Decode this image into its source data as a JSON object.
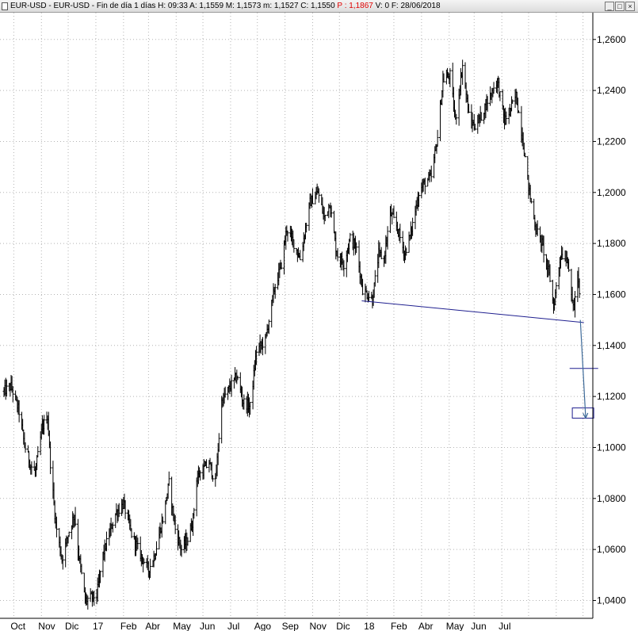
{
  "window": {
    "title_prefix": "EUR-USD - EUR-USD - Fin de día 1 días  H: 09:33  A: 1,1559  M: 1,1573  m: 1,1527  C: 1,1550  ",
    "title_p": "P : 1,1867",
    "title_suffix": "  V: 0  F: 28/06/2018",
    "buttons": {
      "minimize": "_",
      "maximize": "□",
      "close": "×"
    }
  },
  "chart_data": {
    "type": "candlestick",
    "instrument": "EUR-USD",
    "timeframe": "daily",
    "y_axis": {
      "ticks": [
        1.26,
        1.24,
        1.22,
        1.2,
        1.18,
        1.16,
        1.14,
        1.12,
        1.1,
        1.08,
        1.06,
        1.04
      ],
      "tick_labels": [
        "1,2600",
        "1,2400",
        "1,2200",
        "1,2000",
        "1,1800",
        "1,1600",
        "1,1400",
        "1,1200",
        "1,1000",
        "1,0800",
        "1,0600",
        "1,0400"
      ],
      "range": [
        1.033,
        1.2705
      ],
      "side": "right"
    },
    "x_axis": {
      "labels": [
        "Oct",
        "Nov",
        "Dic",
        "17",
        "Feb",
        "Abr",
        "May",
        "Jun",
        "Jul",
        "Ago",
        "Sep",
        "Nov",
        "Dic",
        "18",
        "Feb",
        "Abr",
        "May",
        "Jun",
        "Jul"
      ],
      "range": [
        "2016-09-20",
        "2018-07-12"
      ]
    },
    "grid": "dotted",
    "price_path": [
      [
        "2016-09-20",
        1.122
      ],
      [
        "2016-09-28",
        1.124
      ],
      [
        "2016-10-07",
        1.114
      ],
      [
        "2016-10-13",
        1.101
      ],
      [
        "2016-10-20",
        1.093
      ],
      [
        "2016-10-25",
        1.09
      ],
      [
        "2016-11-02",
        1.108
      ],
      [
        "2016-11-08",
        1.112
      ],
      [
        "2016-11-11",
        1.094
      ],
      [
        "2016-11-17",
        1.07
      ],
      [
        "2016-11-24",
        1.056
      ],
      [
        "2016-12-01",
        1.066
      ],
      [
        "2016-12-08",
        1.074
      ],
      [
        "2016-12-12",
        1.06
      ],
      [
        "2016-12-20",
        1.04
      ],
      [
        "2017-01-02",
        1.042
      ],
      [
        "2017-01-09",
        1.058
      ],
      [
        "2017-01-16",
        1.066
      ],
      [
        "2017-01-23",
        1.074
      ],
      [
        "2017-02-01",
        1.078
      ],
      [
        "2017-02-10",
        1.066
      ],
      [
        "2017-02-20",
        1.058
      ],
      [
        "2017-03-01",
        1.052
      ],
      [
        "2017-03-08",
        1.058
      ],
      [
        "2017-03-17",
        1.072
      ],
      [
        "2017-03-24",
        1.086
      ],
      [
        "2017-03-31",
        1.068
      ],
      [
        "2017-04-07",
        1.06
      ],
      [
        "2017-04-14",
        1.064
      ],
      [
        "2017-04-20",
        1.072
      ],
      [
        "2017-04-24",
        1.088
      ],
      [
        "2017-05-08",
        1.094
      ],
      [
        "2017-05-15",
        1.086
      ],
      [
        "2017-05-22",
        1.118
      ],
      [
        "2017-06-01",
        1.124
      ],
      [
        "2017-06-08",
        1.128
      ],
      [
        "2017-06-15",
        1.118
      ],
      [
        "2017-06-23",
        1.116
      ],
      [
        "2017-06-30",
        1.138
      ],
      [
        "2017-07-10",
        1.142
      ],
      [
        "2017-07-20",
        1.162
      ],
      [
        "2017-07-28",
        1.172
      ],
      [
        "2017-08-03",
        1.186
      ],
      [
        "2017-08-11",
        1.18
      ],
      [
        "2017-08-18",
        1.174
      ],
      [
        "2017-08-29",
        1.196
      ],
      [
        "2017-09-07",
        1.2
      ],
      [
        "2017-09-14",
        1.19
      ],
      [
        "2017-09-20",
        1.196
      ],
      [
        "2017-09-28",
        1.176
      ],
      [
        "2017-10-06",
        1.172
      ],
      [
        "2017-10-13",
        1.182
      ],
      [
        "2017-10-20",
        1.178
      ],
      [
        "2017-10-27",
        1.162
      ],
      [
        "2017-11-07",
        1.158
      ],
      [
        "2017-11-14",
        1.176
      ],
      [
        "2017-11-20",
        1.174
      ],
      [
        "2017-11-27",
        1.192
      ],
      [
        "2017-12-05",
        1.186
      ],
      [
        "2017-12-13",
        1.176
      ],
      [
        "2017-12-20",
        1.184
      ],
      [
        "2017-12-29",
        1.2
      ],
      [
        "2018-01-05",
        1.204
      ],
      [
        "2018-01-12",
        1.206
      ],
      [
        "2018-01-19",
        1.222
      ],
      [
        "2018-01-25",
        1.244
      ],
      [
        "2018-02-02",
        1.246
      ],
      [
        "2018-02-08",
        1.228
      ],
      [
        "2018-02-16",
        1.25
      ],
      [
        "2018-02-23",
        1.23
      ],
      [
        "2018-03-01",
        1.226
      ],
      [
        "2018-03-09",
        1.23
      ],
      [
        "2018-03-16",
        1.236
      ],
      [
        "2018-03-27",
        1.244
      ],
      [
        "2018-04-04",
        1.228
      ],
      [
        "2018-04-10",
        1.232
      ],
      [
        "2018-04-17",
        1.238
      ],
      [
        "2018-04-24",
        1.222
      ],
      [
        "2018-05-01",
        1.202
      ],
      [
        "2018-05-09",
        1.186
      ],
      [
        "2018-05-16",
        1.18
      ],
      [
        "2018-05-25",
        1.166
      ],
      [
        "2018-05-29",
        1.155
      ],
      [
        "2018-06-06",
        1.176
      ],
      [
        "2018-06-14",
        1.174
      ],
      [
        "2018-06-18",
        1.158
      ],
      [
        "2018-06-21",
        1.155
      ],
      [
        "2018-06-25",
        1.168
      ],
      [
        "2018-06-28",
        1.155
      ]
    ],
    "neckline": {
      "from": [
        "2017-10-26",
        1.1575
      ],
      "to": [
        "2018-07-02",
        1.149
      ]
    },
    "target_arrow": {
      "from": [
        "2018-06-28",
        1.15
      ],
      "to": [
        "2018-07-04",
        1.1115
      ]
    },
    "target_line": {
      "from": [
        "2018-06-16",
        1.131
      ],
      "to": [
        "2018-07-18",
        1.131
      ]
    },
    "target_box": {
      "from": [
        "2018-06-19",
        1.1155
      ],
      "to": [
        "2018-07-13",
        1.1115
      ]
    },
    "colors": {
      "bars": "#000000",
      "annotation": "#1f1f8f",
      "arrow": "#3d6a99",
      "grid": "#b4b4b4"
    }
  }
}
